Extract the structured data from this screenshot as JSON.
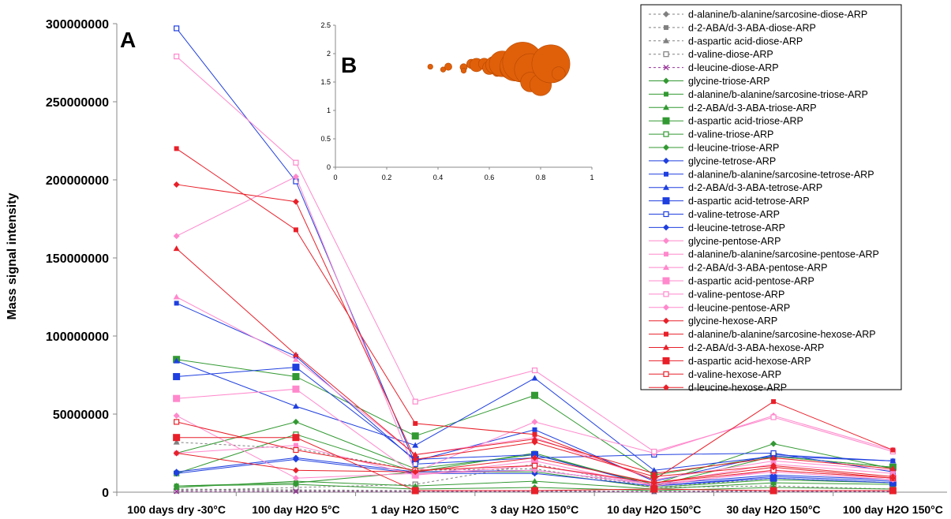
{
  "chart_data": [
    {
      "type": "line",
      "panel_label": "A",
      "ylabel": "Mass signal intensity",
      "xlabel": "",
      "ylim": [
        0,
        300000000
      ],
      "yticks": [
        0,
        50000000,
        100000000,
        150000000,
        200000000,
        250000000,
        300000000
      ],
      "ytick_labels": [
        "0",
        "50000000",
        "100000000",
        "150000000",
        "200000000",
        "250000000",
        "300000000"
      ],
      "categories": [
        "100 days dry -30°C",
        "100 day H2O 5°C",
        "1 day H2O 150°C",
        "3 day H2O 150°C",
        "10 day H2O 150°C",
        "30 day H2O 150°C",
        "100 day H2O 150°C"
      ],
      "legend_position": "right",
      "series": [
        {
          "name": "d-alanine/b-alanine/sarcosine-diose-ARP",
          "color": "#808080",
          "marker": "diamond",
          "dashed": true,
          "values": [
            2000000,
            1500000,
            1000000,
            1000000,
            500000,
            1000000,
            800000
          ]
        },
        {
          "name": "d-2-ABA/d-3-ABA-diose-ARP",
          "color": "#808080",
          "marker": "square",
          "dashed": true,
          "values": [
            1500000,
            1000000,
            800000,
            800000,
            400000,
            800000,
            600000
          ]
        },
        {
          "name": "d-aspartic acid-diose-ARP",
          "color": "#808080",
          "marker": "triangle",
          "dashed": true,
          "values": [
            32000000,
            28000000,
            14000000,
            15000000,
            3000000,
            9000000,
            6000000
          ]
        },
        {
          "name": "d-valine-diose-ARP",
          "color": "#808080",
          "marker": "square-open",
          "dashed": true,
          "values": [
            1000000,
            3000000,
            5000000,
            18000000,
            3000000,
            4000000,
            2000000
          ]
        },
        {
          "name": "d-leucine-diose-ARP",
          "color": "#993399",
          "marker": "x",
          "dashed": true,
          "values": [
            500000,
            500000,
            500000,
            500000,
            300000,
            500000,
            400000
          ]
        },
        {
          "name": "glycine-triose-ARP",
          "color": "#339933",
          "marker": "diamond",
          "dashed": false,
          "values": [
            25000000,
            45000000,
            15000000,
            24000000,
            5000000,
            31000000,
            15000000
          ]
        },
        {
          "name": "d-alanine/b-alanine/sarcosine-triose-ARP",
          "color": "#339933",
          "marker": "square",
          "dashed": false,
          "values": [
            4000000,
            6000000,
            13000000,
            25000000,
            4000000,
            23000000,
            16000000
          ]
        },
        {
          "name": "d-2-ABA/d-3-ABA-triose-ARP",
          "color": "#339933",
          "marker": "triangle",
          "dashed": false,
          "values": [
            3000000,
            7000000,
            4000000,
            7000000,
            2000000,
            6000000,
            5000000
          ]
        },
        {
          "name": "d-aspartic acid-triose-ARP",
          "color": "#339933",
          "marker": "square-big",
          "dashed": false,
          "values": [
            85000000,
            74000000,
            36000000,
            62000000,
            11000000,
            23000000,
            16000000
          ]
        },
        {
          "name": "d-valine-triose-ARP",
          "color": "#339933",
          "marker": "square-open",
          "dashed": false,
          "values": [
            12000000,
            37000000,
            13000000,
            13000000,
            3000000,
            8000000,
            6000000
          ]
        },
        {
          "name": "d-leucine-triose-ARP",
          "color": "#339933",
          "marker": "diamond",
          "dashed": false,
          "values": [
            4000000,
            5000000,
            2000000,
            3000000,
            1000000,
            3000000,
            2000000
          ]
        },
        {
          "name": "glycine-tetrose-ARP",
          "color": "#1f3fdf",
          "marker": "diamond",
          "dashed": false,
          "values": [
            13000000,
            22000000,
            13000000,
            14000000,
            5000000,
            11000000,
            8000000
          ]
        },
        {
          "name": "d-alanine/b-alanine/sarcosine-tetrose-ARP",
          "color": "#1f3fdf",
          "marker": "square",
          "dashed": false,
          "values": [
            121000000,
            87000000,
            20000000,
            40000000,
            7000000,
            24000000,
            20000000
          ]
        },
        {
          "name": "d-2-ABA/d-3-ABA-tetrose-ARP",
          "color": "#1f3fdf",
          "marker": "triangle",
          "dashed": false,
          "values": [
            84000000,
            55000000,
            30000000,
            73000000,
            14000000,
            23000000,
            20000000
          ]
        },
        {
          "name": "d-aspartic acid-tetrose-ARP",
          "color": "#1f3fdf",
          "marker": "square-big",
          "dashed": false,
          "values": [
            74000000,
            80000000,
            21000000,
            24000000,
            4000000,
            9000000,
            6000000
          ]
        },
        {
          "name": "d-valine-tetrose-ARP",
          "color": "#1f3fdf",
          "marker": "square-open",
          "dashed": false,
          "values": [
            297000000,
            199000000,
            18000000,
            22000000,
            24000000,
            25000000,
            13000000
          ]
        },
        {
          "name": "d-leucine-tetrose-ARP",
          "color": "#1f3fdf",
          "marker": "diamond",
          "dashed": false,
          "values": [
            12000000,
            21000000,
            12000000,
            12000000,
            4000000,
            10000000,
            7000000
          ]
        },
        {
          "name": "glycine-pentose-ARP",
          "color": "#ff88cc",
          "marker": "diamond",
          "dashed": false,
          "values": [
            164000000,
            202000000,
            13000000,
            45000000,
            25000000,
            49000000,
            27000000
          ]
        },
        {
          "name": "d-alanine/b-alanine/sarcosine-pentose-ARP",
          "color": "#ff88cc",
          "marker": "square",
          "dashed": false,
          "values": [
            25000000,
            30000000,
            11000000,
            17000000,
            5000000,
            18000000,
            12000000
          ]
        },
        {
          "name": "d-2-ABA/d-3-ABA-pentose-ARP",
          "color": "#ff88cc",
          "marker": "triangle",
          "dashed": false,
          "values": [
            125000000,
            85000000,
            24000000,
            35000000,
            8000000,
            20000000,
            14000000
          ]
        },
        {
          "name": "d-aspartic acid-pentose-ARP",
          "color": "#ff88cc",
          "marker": "square-big",
          "dashed": false,
          "values": [
            60000000,
            66000000,
            11000000,
            20000000,
            4000000,
            14000000,
            9000000
          ]
        },
        {
          "name": "d-valine-pentose-ARP",
          "color": "#ff88cc",
          "marker": "square-open",
          "dashed": false,
          "values": [
            279000000,
            211000000,
            58000000,
            78000000,
            26000000,
            48000000,
            26000000
          ]
        },
        {
          "name": "d-leucine-pentose-ARP",
          "color": "#ff88cc",
          "marker": "diamond",
          "dashed": false,
          "values": [
            49000000,
            9000000,
            12000000,
            14000000,
            5000000,
            13000000,
            8000000
          ]
        },
        {
          "name": "glycine-hexose-ARP",
          "color": "#e8202a",
          "marker": "diamond",
          "dashed": false,
          "values": [
            197000000,
            186000000,
            21000000,
            32000000,
            10000000,
            17000000,
            10000000
          ]
        },
        {
          "name": "d-alanine/b-alanine/sarcosine-hexose-ARP",
          "color": "#e8202a",
          "marker": "square",
          "dashed": false,
          "values": [
            220000000,
            168000000,
            44000000,
            37000000,
            8000000,
            58000000,
            27000000
          ]
        },
        {
          "name": "d-2-ABA/d-3-ABA-hexose-ARP",
          "color": "#e8202a",
          "marker": "triangle",
          "dashed": false,
          "values": [
            156000000,
            88000000,
            24000000,
            34000000,
            12000000,
            22000000,
            15000000
          ]
        },
        {
          "name": "d-aspartic acid-hexose-ARP",
          "color": "#e8202a",
          "marker": "square-big",
          "dashed": false,
          "values": [
            35000000,
            35000000,
            1000000,
            1000000,
            2000000,
            1000000,
            1000000
          ]
        },
        {
          "name": "d-valine-hexose-ARP",
          "color": "#e8202a",
          "marker": "square-open",
          "dashed": false,
          "values": [
            45000000,
            27000000,
            14000000,
            17000000,
            6000000,
            14000000,
            9000000
          ]
        },
        {
          "name": "d-leucine-hexose-ARP",
          "color": "#e8202a",
          "marker": "diamond",
          "dashed": false,
          "values": [
            25000000,
            14000000,
            13000000,
            22000000,
            6000000,
            16000000,
            9000000
          ]
        }
      ]
    },
    {
      "type": "scatter",
      "panel_label": "B",
      "xlim": [
        0,
        1
      ],
      "ylim": [
        0,
        2.5
      ],
      "xticks": [
        "0",
        "0.2",
        "0.4",
        "0.6",
        "0.8",
        "1"
      ],
      "yticks": [
        "0",
        "0.5",
        "1",
        "1.5",
        "2",
        "2.5"
      ],
      "color": "#e0600a",
      "points": [
        {
          "x": 0.37,
          "y": 1.77,
          "size": 0.2
        },
        {
          "x": 0.42,
          "y": 1.72,
          "size": 0.2
        },
        {
          "x": 0.44,
          "y": 1.77,
          "size": 0.4
        },
        {
          "x": 0.5,
          "y": 1.76,
          "size": 0.4
        },
        {
          "x": 0.5,
          "y": 1.7,
          "size": 0.2
        },
        {
          "x": 0.53,
          "y": 1.82,
          "size": 0.6
        },
        {
          "x": 0.55,
          "y": 1.8,
          "size": 1.0
        },
        {
          "x": 0.58,
          "y": 1.82,
          "size": 0.8
        },
        {
          "x": 0.6,
          "y": 1.75,
          "size": 1.0
        },
        {
          "x": 0.62,
          "y": 1.8,
          "size": 1.4
        },
        {
          "x": 0.63,
          "y": 1.68,
          "size": 0.6
        },
        {
          "x": 0.65,
          "y": 1.82,
          "size": 2.2
        },
        {
          "x": 0.68,
          "y": 1.73,
          "size": 1.6
        },
        {
          "x": 0.7,
          "y": 1.78,
          "size": 2.6
        },
        {
          "x": 0.73,
          "y": 1.85,
          "size": 3.6
        },
        {
          "x": 0.76,
          "y": 1.72,
          "size": 2.8
        },
        {
          "x": 0.76,
          "y": 1.5,
          "size": 1.6
        },
        {
          "x": 0.8,
          "y": 1.45,
          "size": 1.8
        },
        {
          "x": 0.84,
          "y": 1.82,
          "size": 3.4
        },
        {
          "x": 0.87,
          "y": 1.65,
          "size": 1.0
        }
      ]
    }
  ]
}
